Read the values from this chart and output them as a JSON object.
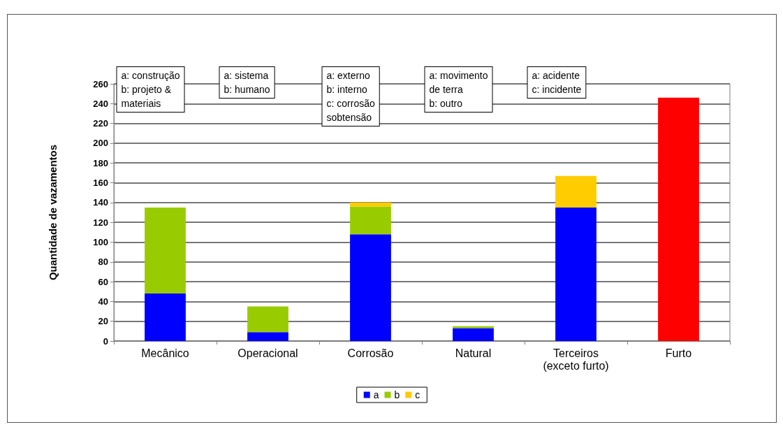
{
  "chart_data": {
    "type": "bar",
    "stacked": true,
    "ylabel": "Quantidade de vazamentos",
    "categories": [
      "Mecânico",
      "Operacional",
      "Corrosão",
      "Natural",
      "Terceiros\n(exceto furto)",
      "Furto"
    ],
    "series": [
      {
        "name": "a",
        "color": "#0000ff",
        "values": [
          48,
          9,
          108,
          13,
          135,
          null
        ]
      },
      {
        "name": "b",
        "color": "#99cc00",
        "values": [
          87,
          26,
          28,
          2,
          null,
          null
        ]
      },
      {
        "name": "c",
        "color": "#ffcc00",
        "values": [
          null,
          null,
          4,
          null,
          32,
          null
        ]
      },
      {
        "color": "#ff0000",
        "values": [
          null,
          null,
          null,
          null,
          null,
          246
        ]
      }
    ],
    "ylim": [
      0,
      260
    ],
    "yticks": [
      0,
      20,
      40,
      60,
      80,
      100,
      120,
      140,
      160,
      180,
      200,
      220,
      240,
      260
    ],
    "grid": "y",
    "legend": "bottom",
    "annotations": [
      "a: construção\nb: projeto &\nmateriais",
      "a: sistema\nb: humano",
      "a: externo\nb: interno\nc: corrosão\nsobtensão",
      "a: movimento\nde terra\nb: outro",
      "a: acidente\nc: incidente"
    ]
  }
}
